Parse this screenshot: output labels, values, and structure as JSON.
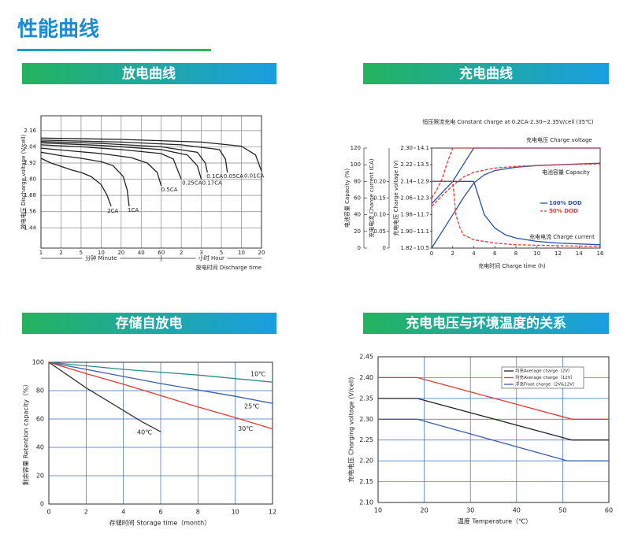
{
  "title": "性能曲线",
  "chart_data": [
    {
      "type": "line",
      "title": "放电曲线",
      "ylabel": "放电电压 Discharge voltage (V/cell)",
      "xlabel": "放电时间 Discharge time",
      "minute_label": "分钟 Minute",
      "hour_label": "小时 Hour",
      "xlim": [
        0,
        11
      ],
      "xticks": [
        {
          "value": 0,
          "label": "1"
        },
        {
          "value": 1,
          "label": "2"
        },
        {
          "value": 2,
          "label": "5"
        },
        {
          "value": 3,
          "label": "10"
        },
        {
          "value": 4,
          "label": "20"
        },
        {
          "value": 5,
          "label": "40"
        },
        {
          "value": 6,
          "label": "60"
        },
        {
          "value": 7,
          "label": "2"
        },
        {
          "value": 8,
          "label": "3"
        },
        {
          "value": 9,
          "label": "5"
        },
        {
          "value": 10,
          "label": "10"
        },
        {
          "value": 11,
          "label": "20"
        }
      ],
      "ylim": [
        1.29,
        2.27
      ],
      "yticks": [
        2.16,
        2.04,
        1.92,
        {
          "value": 1.8,
          "label": "1.80"
        },
        1.68,
        1.56,
        1.44
      ],
      "grid": true,
      "legend": "inline",
      "series": [
        {
          "name": "2CA",
          "color": "#222222",
          "x": [
            0,
            0.5,
            1,
            1.5,
            2,
            2.5,
            3,
            3.3,
            3.5
          ],
          "values": [
            1.955,
            1.92,
            1.895,
            1.87,
            1.85,
            1.82,
            1.76,
            1.68,
            1.6
          ]
        },
        {
          "name": "1CA",
          "color": "#222222",
          "x": [
            0,
            1,
            2,
            3,
            3.6,
            4.1,
            4.3,
            4.4
          ],
          "values": [
            2.0,
            1.975,
            1.955,
            1.93,
            1.9,
            1.82,
            1.72,
            1.6
          ]
        },
        {
          "name": "0.5CA",
          "color": "#222222",
          "x": [
            0,
            1.5,
            3,
            4.5,
            5.3,
            5.8,
            6
          ],
          "values": [
            2.03,
            2.01,
            1.99,
            1.96,
            1.92,
            1.85,
            1.75
          ]
        },
        {
          "name": "0.25CA",
          "color": "#222222",
          "x": [
            0,
            2,
            4,
            6,
            6.6,
            7
          ],
          "values": [
            2.055,
            2.04,
            2.02,
            1.99,
            1.95,
            1.8
          ]
        },
        {
          "name": "0.17CA",
          "color": "#222222",
          "x": [
            0,
            3,
            6,
            7.3,
            7.8,
            8
          ],
          "values": [
            2.07,
            2.05,
            2.02,
            1.98,
            1.9,
            1.8
          ]
        },
        {
          "name": "0.1CA",
          "color": "#222222",
          "x": [
            0,
            3,
            6,
            7.8,
            8.2,
            8.3
          ],
          "values": [
            2.08,
            2.065,
            2.04,
            2.0,
            1.92,
            1.85
          ]
        },
        {
          "name": "0.05CA",
          "color": "#222222",
          "x": [
            0,
            4,
            7,
            8.9,
            9.2,
            9.3
          ],
          "values": [
            2.09,
            2.075,
            2.055,
            2.02,
            1.95,
            1.85
          ]
        },
        {
          "name": "0.01CA",
          "color": "#222222",
          "x": [
            0,
            4,
            8,
            10,
            10.7,
            11
          ],
          "values": [
            2.105,
            2.095,
            2.075,
            2.045,
            1.98,
            1.86
          ]
        }
      ]
    },
    {
      "type": "line",
      "title": "充电曲线",
      "subtitle": "恒压限流充电 Constant charge at 0.2CA-2.30~2.35V/cell (35℃)",
      "xlabel": "充电时间 Charge time (h)",
      "ylabel": "电池容量 Capacity (%)",
      "y2label": "充电电流 Charge current (CA)",
      "y3label": "充电电压 Charge voltage (V)",
      "xlim": [
        0,
        16
      ],
      "xticks": [
        0,
        2,
        4,
        6,
        8,
        10,
        12,
        14,
        16
      ],
      "ylim": [
        0,
        120
      ],
      "yticks": [
        0,
        20,
        40,
        60,
        80,
        100,
        120
      ],
      "y2lim": [
        0,
        0.3
      ],
      "y2ticks": [
        0,
        0.05,
        {
          "value": 0.1,
          "label": "0.10"
        },
        0.15,
        {
          "value": 0.2,
          "label": "0.20"
        }
      ],
      "y3lim": [
        10.5,
        14.1
      ],
      "y3ticks": [
        10.5,
        11.1,
        11.7,
        12.3,
        12.9,
        13.5,
        14.1
      ],
      "y4lim": [
        1.82,
        2.3
      ],
      "y4ticks": [
        1.82,
        {
          "value": 1.9,
          "label": "1.90"
        },
        1.98,
        2.06,
        2.14,
        2.22,
        {
          "value": 2.3,
          "label": "2.30"
        }
      ],
      "grid": false,
      "legend": "center right",
      "legend_entries": [
        {
          "name": "100% DOD",
          "color": "#2a4fa8",
          "dash": false
        },
        {
          "name": "50% DOD",
          "color": "#e53935",
          "dash": true
        }
      ],
      "annotations": [
        "充电电压 Charge voltage",
        "电池容量 Capacity",
        "充电电流 Charge current"
      ],
      "series": [
        {
          "axis": "y3",
          "color": "#2a4fa8",
          "dash": false,
          "x": [
            0,
            1,
            2,
            3,
            4,
            16
          ],
          "values": [
            12.1,
            12.5,
            12.9,
            13.5,
            14.1,
            14.1
          ]
        },
        {
          "axis": "y3",
          "color": "#e53935",
          "dash": true,
          "x": [
            0,
            0.5,
            1,
            1.5,
            2,
            16
          ],
          "values": [
            12.3,
            12.6,
            13.0,
            13.6,
            14.1,
            14.1
          ]
        },
        {
          "axis": "y",
          "color": "#2a4fa8",
          "dash": false,
          "x": [
            0,
            1,
            2,
            3,
            4,
            5,
            6,
            8,
            10,
            12,
            14,
            16
          ],
          "values": [
            0,
            20,
            40,
            60,
            78,
            88,
            93,
            97,
            99,
            100,
            101,
            102
          ]
        },
        {
          "axis": "y",
          "color": "#e53935",
          "dash": true,
          "x": [
            0,
            1,
            2,
            3,
            4,
            6,
            8,
            10,
            12,
            16
          ],
          "values": [
            50,
            63,
            75,
            85,
            91,
            96,
            98,
            99,
            100,
            101
          ]
        },
        {
          "axis": "y2",
          "color": "#2a4fa8",
          "dash": false,
          "x": [
            0,
            4,
            4.5,
            5,
            6,
            7,
            8,
            10,
            12,
            16
          ],
          "values": [
            0.2,
            0.2,
            0.15,
            0.1,
            0.06,
            0.04,
            0.03,
            0.02,
            0.015,
            0.01
          ]
        },
        {
          "axis": "y2",
          "color": "#e53935",
          "dash": true,
          "x": [
            0,
            2,
            2.3,
            2.7,
            3,
            4,
            6,
            8,
            12,
            16
          ],
          "values": [
            0.2,
            0.2,
            0.1,
            0.06,
            0.04,
            0.025,
            0.015,
            0.01,
            0.007,
            0.005
          ]
        }
      ]
    },
    {
      "type": "line",
      "title": "存储自放电",
      "xlabel": "存储时间 Storage time（month）",
      "ylabel": "剩余容量 Retention capacity（%）",
      "xlim": [
        0,
        12
      ],
      "xticks": [
        0,
        2,
        4,
        6,
        8,
        10,
        12
      ],
      "ylim": [
        0,
        100
      ],
      "yticks": [
        0,
        20,
        40,
        60,
        80,
        100
      ],
      "grid": true,
      "legend": "inline",
      "series": [
        {
          "name": "10℃",
          "color": "#2e8b8b",
          "x": [
            0,
            2,
            4,
            6,
            8,
            10,
            12
          ],
          "values": [
            100,
            97.5,
            95,
            93,
            91,
            88.5,
            86
          ]
        },
        {
          "name": "25℃",
          "color": "#3a5ea8",
          "x": [
            0,
            2,
            4,
            6,
            8,
            10,
            12
          ],
          "values": [
            100,
            95,
            90,
            85,
            80.5,
            76,
            71
          ]
        },
        {
          "name": "30℃",
          "color": "#e53935",
          "x": [
            0,
            2,
            4,
            6,
            8,
            10,
            12
          ],
          "values": [
            100,
            92,
            84.5,
            76.5,
            68.5,
            61,
            53
          ]
        },
        {
          "name": "40℃",
          "color": "#333333",
          "x": [
            0,
            1,
            2,
            3,
            4,
            5,
            6
          ],
          "values": [
            100,
            91,
            82,
            74,
            66,
            58,
            51
          ]
        }
      ]
    },
    {
      "type": "line",
      "title": "充电电压与环境温度的关系",
      "xlabel": "温度 Temperature（℃）",
      "ylabel": "充电电压 Charging voltage (V/cell)",
      "xlim": [
        10,
        60
      ],
      "xticks": [
        10,
        20,
        30,
        40,
        50,
        60
      ],
      "ylim": [
        2.1,
        2.45
      ],
      "yticks": [
        {
          "value": 2.1,
          "label": "2.10"
        },
        2.15,
        {
          "value": 2.2,
          "label": "2.20"
        },
        2.25,
        {
          "value": 2.3,
          "label": "2.30"
        },
        2.35,
        {
          "value": 2.4,
          "label": "2.40"
        },
        2.45
      ],
      "grid": true,
      "legend": "upper right",
      "series": [
        {
          "name": "均充Average charge（2V）",
          "color": "#222222",
          "x": [
            10,
            18.5,
            52,
            60
          ],
          "values": [
            2.35,
            2.35,
            2.25,
            2.25
          ]
        },
        {
          "name": "均充Average charge（12V）",
          "color": "#e53935",
          "x": [
            10,
            18.5,
            52,
            60
          ],
          "values": [
            2.4,
            2.4,
            2.3,
            2.3
          ]
        },
        {
          "name": "浮充Float charge（2V&12V）",
          "color": "#3a5ea8",
          "x": [
            10,
            18.5,
            51,
            60
          ],
          "values": [
            2.3,
            2.3,
            2.2,
            2.2
          ]
        }
      ]
    }
  ]
}
